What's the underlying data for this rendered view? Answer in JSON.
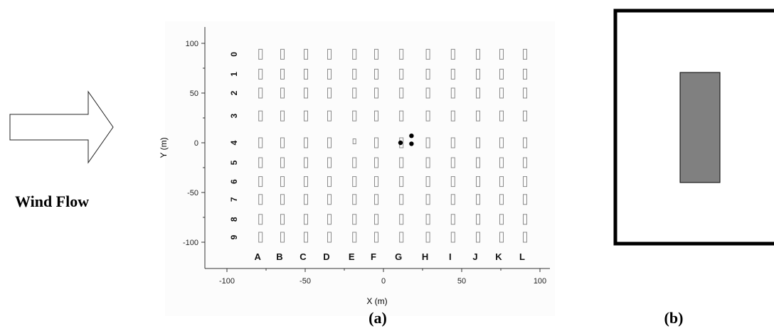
{
  "wind_label": "Wind Flow",
  "panel_a_caption": "(a)",
  "panel_b_caption": "(b)",
  "chart_data": {
    "type": "scatter",
    "title": "",
    "xlabel": "X (m)",
    "ylabel": "Y (m)",
    "xlim": [
      -110,
      100
    ],
    "ylim": [
      -115,
      105
    ],
    "x_ticks": [
      "-100",
      "-50",
      "0",
      "50",
      "100"
    ],
    "y_ticks": [
      "100",
      "50",
      "0",
      "-50",
      "-100"
    ],
    "column_labels": [
      "A",
      "B",
      "C",
      "D",
      "E",
      "F",
      "G",
      "H",
      "I",
      "J",
      "K",
      "L"
    ],
    "column_x": [
      -84,
      -70,
      -55,
      -40,
      -24,
      -10,
      6,
      23,
      39,
      55,
      70,
      85
    ],
    "row_labels": [
      "0",
      "1",
      "2",
      "3",
      "4",
      "5",
      "6",
      "7",
      "8",
      "9"
    ],
    "row_y": [
      89,
      69,
      50,
      27,
      0,
      -20,
      -39,
      -57,
      -77,
      -95
    ],
    "grid": false,
    "markers": [
      {
        "x": 10,
        "y": 0
      },
      {
        "x": 17,
        "y": 7
      },
      {
        "x": 17,
        "y": -1
      }
    ]
  }
}
